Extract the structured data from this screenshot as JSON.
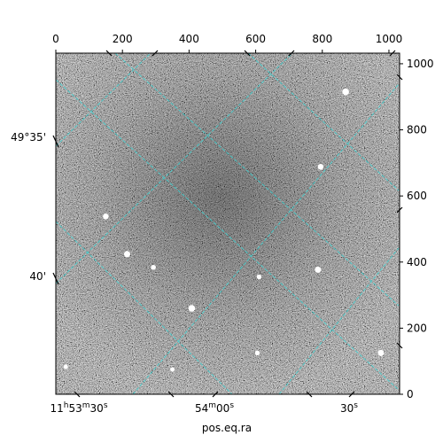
{
  "chart_data": {
    "type": "image",
    "xlabel": "pos.eq.ra",
    "ylabel": "",
    "pixel_axes": {
      "x_ticks": [
        0,
        200,
        400,
        600,
        800,
        1000
      ],
      "y_ticks": [
        0,
        200,
        400,
        600,
        800,
        1000
      ],
      "xlim": [
        0,
        1032
      ],
      "ylim": [
        0,
        1032
      ]
    },
    "world_axes": {
      "ra_tick_labels": [
        {
          "h": "11",
          "m": "53",
          "s": "30",
          "at": 0
        },
        {
          "h": "",
          "m": "54",
          "s": "00",
          "at": 1
        },
        {
          "h": "",
          "m": "",
          "s": "30",
          "at": 2
        }
      ],
      "dec_tick_labels": [
        "49°35'",
        "40'"
      ]
    },
    "grid": true,
    "grid_color": "#3fd0d0",
    "image_colormap": "gray",
    "sources": [
      {
        "x": 870,
        "y": 915,
        "brightness": 1.0
      },
      {
        "x": 795,
        "y": 688,
        "brightness": 0.8
      },
      {
        "x": 150,
        "y": 538,
        "brightness": 0.8
      },
      {
        "x": 214,
        "y": 424,
        "brightness": 0.9
      },
      {
        "x": 293,
        "y": 384,
        "brightness": 0.6
      },
      {
        "x": 787,
        "y": 377,
        "brightness": 0.9
      },
      {
        "x": 408,
        "y": 260,
        "brightness": 1.0
      },
      {
        "x": 610,
        "y": 355,
        "brightness": 0.6
      },
      {
        "x": 976,
        "y": 125,
        "brightness": 0.9
      },
      {
        "x": 605,
        "y": 125,
        "brightness": 0.6
      },
      {
        "x": 30,
        "y": 83,
        "brightness": 0.5
      },
      {
        "x": 350,
        "y": 75,
        "brightness": 0.5
      }
    ]
  }
}
